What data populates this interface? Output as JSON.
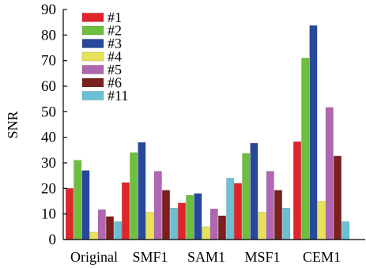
{
  "chart_data": {
    "type": "bar",
    "title": "",
    "xlabel": "",
    "ylabel": "SNR",
    "ylim": [
      0,
      90
    ],
    "yticks": [
      0,
      10,
      20,
      30,
      40,
      50,
      60,
      70,
      80,
      90
    ],
    "grid": false,
    "legend_position": "top-left",
    "categories": [
      "Original",
      "SMF1",
      "SAM1",
      "MSF1",
      "CEM1"
    ],
    "series": [
      {
        "name": "#1",
        "color": "#e0242b",
        "values": [
          20,
          22.3,
          14.3,
          22,
          38.3
        ]
      },
      {
        "name": "#2",
        "color": "#6fbf3f",
        "values": [
          31,
          34,
          17.3,
          33.7,
          71
        ]
      },
      {
        "name": "#3",
        "color": "#27489b",
        "values": [
          27,
          38,
          18,
          37.7,
          83.7
        ]
      },
      {
        "name": "#4",
        "color": "#e8e25a",
        "values": [
          3,
          10.7,
          5,
          10.7,
          15
        ]
      },
      {
        "name": "#5",
        "color": "#b066b0",
        "values": [
          11.7,
          26.7,
          12,
          26.7,
          51.7
        ]
      },
      {
        "name": "#6",
        "color": "#7b1f1f",
        "values": [
          9,
          19.3,
          9.3,
          19.3,
          32.7
        ]
      },
      {
        "name": "#11",
        "color": "#6cc0d4",
        "values": [
          7,
          12.3,
          24,
          12.3,
          7
        ]
      }
    ]
  }
}
